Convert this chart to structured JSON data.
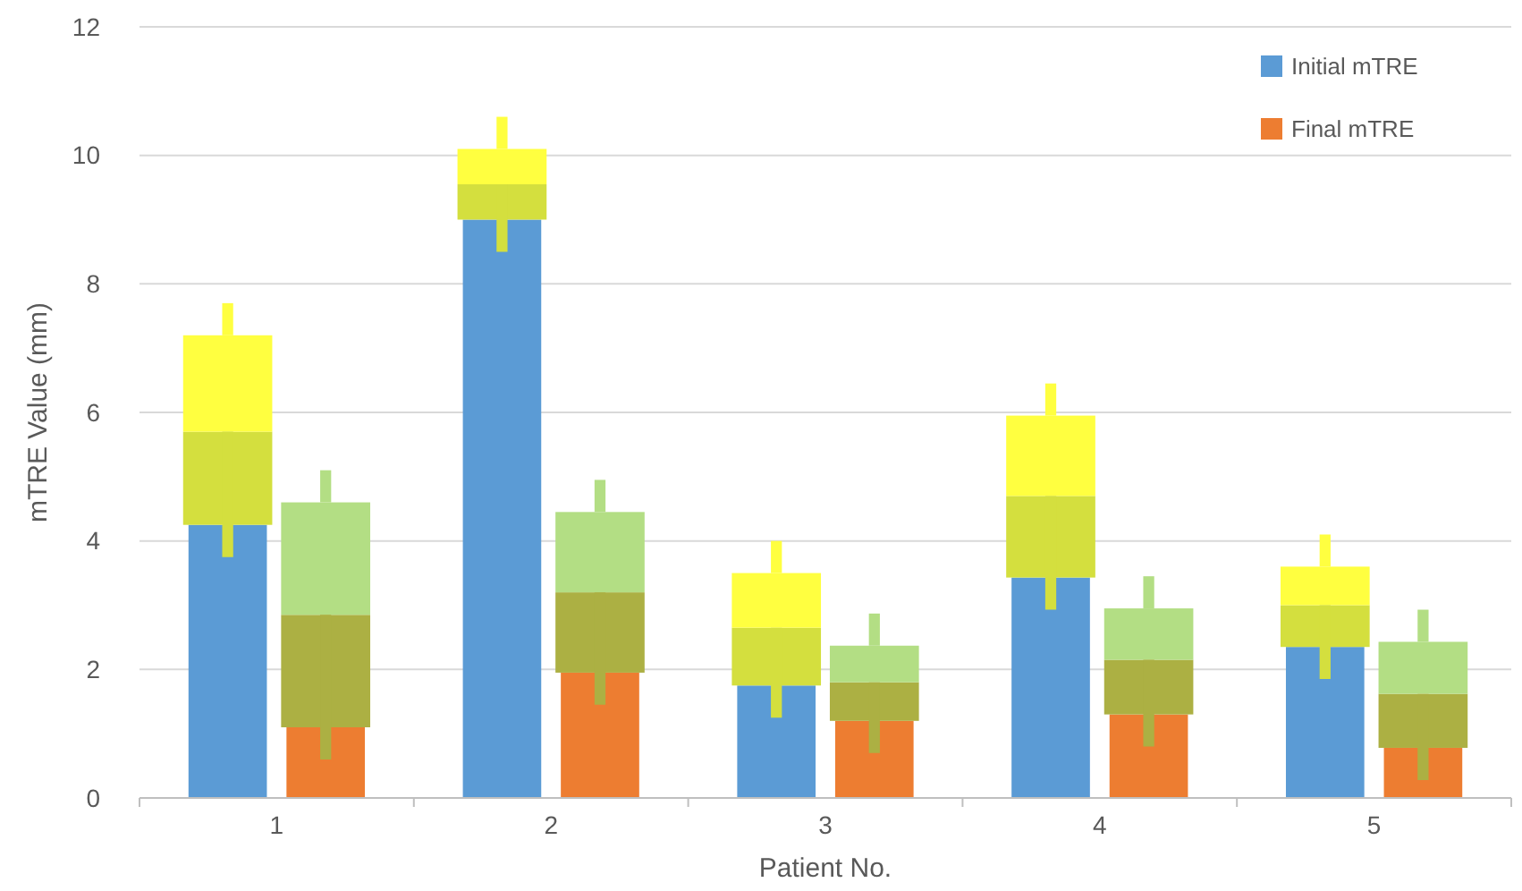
{
  "chart_data": {
    "type": "bar",
    "xlabel": "Patient No.",
    "ylabel": "mTRE Value (mm)",
    "categories": [
      "1",
      "2",
      "3",
      "4",
      "5"
    ],
    "series": [
      {
        "name": "Initial mTRE",
        "color": "#5b9bd5",
        "values": [
          4.25,
          9.0,
          1.75,
          3.43,
          2.35
        ]
      },
      {
        "color": "#d4df3e",
        "values": [
          1.45,
          0.55,
          0.9,
          1.27,
          0.65
        ],
        "base": [
          4.25,
          9.0,
          1.75,
          3.43,
          2.35
        ],
        "errors": [
          [
            3.75,
            5.7
          ],
          [
            8.5,
            9.55
          ],
          [
            1.25,
            2.65
          ],
          [
            2.93,
            4.7
          ],
          [
            1.85,
            3.0
          ]
        ]
      },
      {
        "color": "#ffff40",
        "values": [
          1.5,
          0.55,
          0.85,
          1.25,
          0.6
        ],
        "base": [
          5.7,
          9.55,
          2.65,
          4.7,
          3.0
        ],
        "errors": [
          [
            7.2,
            7.7
          ],
          [
            10.1,
            10.6
          ],
          [
            3.5,
            4.0
          ],
          [
            5.95,
            6.45
          ],
          [
            3.6,
            4.1
          ]
        ]
      },
      {
        "name": "Final mTRE",
        "color": "#ed7d31",
        "values": [
          1.1,
          1.95,
          1.2,
          1.3,
          0.78
        ]
      },
      {
        "color": "#acb043",
        "values": [
          1.75,
          1.25,
          0.6,
          0.85,
          0.84
        ],
        "base": [
          1.1,
          1.95,
          1.2,
          1.3,
          0.78
        ],
        "errors": [
          [
            0.6,
            2.85
          ],
          [
            1.45,
            3.2
          ],
          [
            0.7,
            1.8
          ],
          [
            0.8,
            2.15
          ],
          [
            0.28,
            1.62
          ]
        ]
      },
      {
        "color": "#b3de84",
        "values": [
          1.75,
          1.25,
          0.57,
          0.8,
          0.81
        ],
        "base": [
          2.85,
          3.2,
          1.8,
          2.15,
          1.62
        ],
        "errors": [
          [
            4.6,
            5.1
          ],
          [
            4.45,
            4.95
          ],
          [
            2.37,
            2.87
          ],
          [
            2.95,
            3.45
          ],
          [
            2.43,
            2.93
          ]
        ]
      }
    ],
    "ylim": [
      0,
      12
    ],
    "yticks": [
      0,
      2,
      4,
      6,
      8,
      10,
      12
    ],
    "grid": "y",
    "legend": "top right"
  }
}
